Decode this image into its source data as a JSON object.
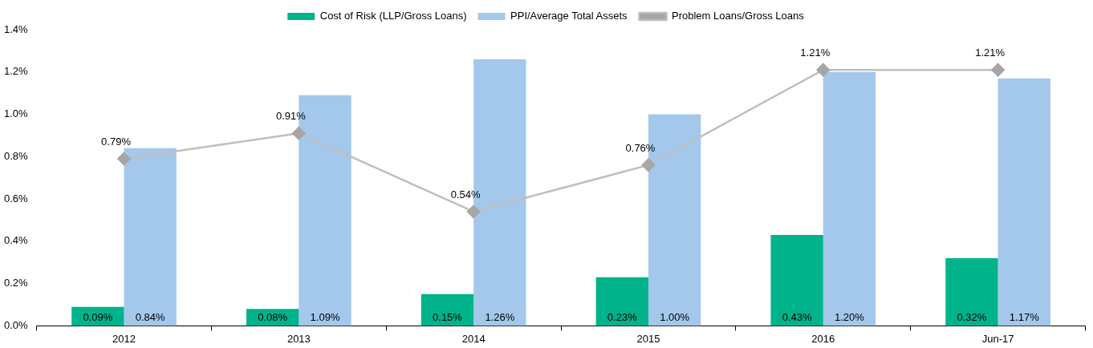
{
  "chart_data": {
    "type": "bar",
    "categories": [
      "2012",
      "2013",
      "2014",
      "2015",
      "2016",
      "Jun-17"
    ],
    "series": [
      {
        "name": "Cost of Risk (LLP/Gross Loans)",
        "color": "#00b38a",
        "values": [
          0.09,
          0.08,
          0.15,
          0.23,
          0.43,
          0.32
        ],
        "value_labels": [
          "0.09%",
          "0.08%",
          "0.15%",
          "0.23%",
          "0.43%",
          "0.32%"
        ]
      },
      {
        "name": "PPI/Average Total Assets",
        "color": "#a3c8eb",
        "values": [
          0.84,
          1.09,
          1.26,
          1.0,
          1.2,
          1.17
        ],
        "value_labels": [
          "0.84%",
          "1.09%",
          "1.26%",
          "1.00%",
          "1.20%",
          "1.17%"
        ]
      },
      {
        "name": "Problem Loans/Gross Loans",
        "type": "line",
        "color": "#bfbfbf",
        "marker": "diamond",
        "values": [
          0.79,
          0.91,
          0.54,
          0.76,
          1.21,
          1.21
        ],
        "value_labels": [
          "0.79%",
          "0.91%",
          "0.54%",
          "0.76%",
          "1.21%",
          "1.21%"
        ]
      }
    ],
    "ylim": [
      0,
      1.4
    ],
    "yticks": [
      {
        "value": 0,
        "label": "0.0%"
      },
      {
        "value": 0.2,
        "label": "0.2%"
      },
      {
        "value": 0.4,
        "label": "0.4%"
      },
      {
        "value": 0.6,
        "label": "0.6%"
      },
      {
        "value": 0.8,
        "label": "0.8%"
      },
      {
        "value": 1.0,
        "label": "1.0%"
      },
      {
        "value": 1.2,
        "label": "1.2%"
      },
      {
        "value": 1.4,
        "label": "1.4%"
      }
    ],
    "grid": false,
    "legend": "top"
  }
}
